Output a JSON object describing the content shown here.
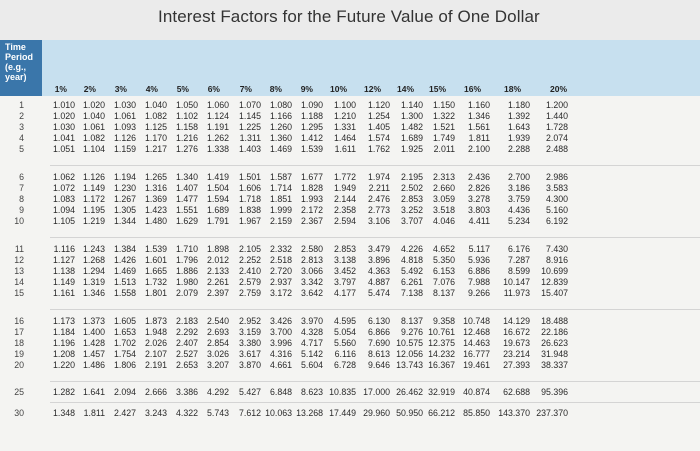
{
  "title": "Interest Factors for the Future Value of One Dollar",
  "time_header": [
    "Time",
    "Period",
    "(e.g.,",
    "year)"
  ],
  "columns": [
    "1%",
    "2%",
    "3%",
    "4%",
    "5%",
    "6%",
    "7%",
    "8%",
    "9%",
    "10%",
    "12%",
    "14%",
    "15%",
    "16%",
    "18%",
    "20%"
  ],
  "rows": [
    {
      "period": "1",
      "values": [
        "1.010",
        "1.020",
        "1.030",
        "1.040",
        "1.050",
        "1.060",
        "1.070",
        "1.080",
        "1.090",
        "1.100",
        "1.120",
        "1.140",
        "1.150",
        "1.160",
        "1.180",
        "1.200"
      ]
    },
    {
      "period": "2",
      "values": [
        "1.020",
        "1.040",
        "1.061",
        "1.082",
        "1.102",
        "1.124",
        "1.145",
        "1.166",
        "1.188",
        "1.210",
        "1.254",
        "1.300",
        "1.322",
        "1.346",
        "1.392",
        "1.440"
      ]
    },
    {
      "period": "3",
      "values": [
        "1.030",
        "1.061",
        "1.093",
        "1.125",
        "1.158",
        "1.191",
        "1.225",
        "1.260",
        "1.295",
        "1.331",
        "1.405",
        "1.482",
        "1.521",
        "1.561",
        "1.643",
        "1.728"
      ]
    },
    {
      "period": "4",
      "values": [
        "1.041",
        "1.082",
        "1.126",
        "1.170",
        "1.216",
        "1.262",
        "1.311",
        "1.360",
        "1.412",
        "1.464",
        "1.574",
        "1.689",
        "1.749",
        "1.811",
        "1.939",
        "2.074"
      ]
    },
    {
      "period": "5",
      "values": [
        "1.051",
        "1.104",
        "1.159",
        "1.217",
        "1.276",
        "1.338",
        "1.403",
        "1.469",
        "1.539",
        "1.611",
        "1.762",
        "1.925",
        "2.011",
        "2.100",
        "2.288",
        "2.488"
      ]
    },
    {
      "period": "6",
      "values": [
        "1.062",
        "1.126",
        "1.194",
        "1.265",
        "1.340",
        "1.419",
        "1.501",
        "1.587",
        "1.677",
        "1.772",
        "1.974",
        "2.195",
        "2.313",
        "2.436",
        "2.700",
        "2.986"
      ]
    },
    {
      "period": "7",
      "values": [
        "1.072",
        "1.149",
        "1.230",
        "1.316",
        "1.407",
        "1.504",
        "1.606",
        "1.714",
        "1.828",
        "1.949",
        "2.211",
        "2.502",
        "2.660",
        "2.826",
        "3.186",
        "3.583"
      ]
    },
    {
      "period": "8",
      "values": [
        "1.083",
        "1.172",
        "1.267",
        "1.369",
        "1.477",
        "1.594",
        "1.718",
        "1.851",
        "1.993",
        "2.144",
        "2.476",
        "2.853",
        "3.059",
        "3.278",
        "3.759",
        "4.300"
      ]
    },
    {
      "period": "9",
      "values": [
        "1.094",
        "1.195",
        "1.305",
        "1.423",
        "1.551",
        "1.689",
        "1.838",
        "1.999",
        "2.172",
        "2.358",
        "2.773",
        "3.252",
        "3.518",
        "3.803",
        "4.436",
        "5.160"
      ]
    },
    {
      "period": "10",
      "values": [
        "1.105",
        "1.219",
        "1.344",
        "1.480",
        "1.629",
        "1.791",
        "1.967",
        "2.159",
        "2.367",
        "2.594",
        "3.106",
        "3.707",
        "4.046",
        "4.411",
        "5.234",
        "6.192"
      ]
    },
    {
      "period": "11",
      "values": [
        "1.116",
        "1.243",
        "1.384",
        "1.539",
        "1.710",
        "1.898",
        "2.105",
        "2.332",
        "2.580",
        "2.853",
        "3.479",
        "4.226",
        "4.652",
        "5.117",
        "6.176",
        "7.430"
      ]
    },
    {
      "period": "12",
      "values": [
        "1.127",
        "1.268",
        "1.426",
        "1.601",
        "1.796",
        "2.012",
        "2.252",
        "2.518",
        "2.813",
        "3.138",
        "3.896",
        "4.818",
        "5.350",
        "5.936",
        "7.287",
        "8.916"
      ]
    },
    {
      "period": "13",
      "values": [
        "1.138",
        "1.294",
        "1.469",
        "1.665",
        "1.886",
        "2.133",
        "2.410",
        "2.720",
        "3.066",
        "3.452",
        "4.363",
        "5.492",
        "6.153",
        "6.886",
        "8.599",
        "10.699"
      ]
    },
    {
      "period": "14",
      "values": [
        "1.149",
        "1.319",
        "1.513",
        "1.732",
        "1.980",
        "2.261",
        "2.579",
        "2.937",
        "3.342",
        "3.797",
        "4.887",
        "6.261",
        "7.076",
        "7.988",
        "10.147",
        "12.839"
      ]
    },
    {
      "period": "15",
      "values": [
        "1.161",
        "1.346",
        "1.558",
        "1.801",
        "2.079",
        "2.397",
        "2.759",
        "3.172",
        "3.642",
        "4.177",
        "5.474",
        "7.138",
        "8.137",
        "9.266",
        "11.973",
        "15.407"
      ]
    },
    {
      "period": "16",
      "values": [
        "1.173",
        "1.373",
        "1.605",
        "1.873",
        "2.183",
        "2.540",
        "2.952",
        "3.426",
        "3.970",
        "4.595",
        "6.130",
        "8.137",
        "9.358",
        "10.748",
        "14.129",
        "18.488"
      ]
    },
    {
      "period": "17",
      "values": [
        "1.184",
        "1.400",
        "1.653",
        "1.948",
        "2.292",
        "2.693",
        "3.159",
        "3.700",
        "4.328",
        "5.054",
        "6.866",
        "9.276",
        "10.761",
        "12.468",
        "16.672",
        "22.186"
      ]
    },
    {
      "period": "18",
      "values": [
        "1.196",
        "1.428",
        "1.702",
        "2.026",
        "2.407",
        "2.854",
        "3.380",
        "3.996",
        "4.717",
        "5.560",
        "7.690",
        "10.575",
        "12.375",
        "14.463",
        "19.673",
        "26.623"
      ]
    },
    {
      "period": "19",
      "values": [
        "1.208",
        "1.457",
        "1.754",
        "2.107",
        "2.527",
        "3.026",
        "3.617",
        "4.316",
        "5.142",
        "6.116",
        "8.613",
        "12.056",
        "14.232",
        "16.777",
        "23.214",
        "31.948"
      ]
    },
    {
      "period": "20",
      "values": [
        "1.220",
        "1.486",
        "1.806",
        "2.191",
        "2.653",
        "3.207",
        "3.870",
        "4.661",
        "5.604",
        "6.728",
        "9.646",
        "13.743",
        "16.367",
        "19.461",
        "27.393",
        "38.337"
      ]
    },
    {
      "period": "25",
      "values": [
        "1.282",
        "1.641",
        "2.094",
        "2.666",
        "3.386",
        "4.292",
        "5.427",
        "6.848",
        "8.623",
        "10.835",
        "17.000",
        "26.462",
        "32.919",
        "40.874",
        "62.688",
        "95.396"
      ]
    },
    {
      "period": "30",
      "values": [
        "1.348",
        "1.811",
        "2.427",
        "3.243",
        "4.322",
        "5.743",
        "7.612",
        "10.063",
        "13.268",
        "17.449",
        "29.960",
        "50.950",
        "66.212",
        "85.850",
        "143.370",
        "237.370"
      ]
    }
  ]
}
